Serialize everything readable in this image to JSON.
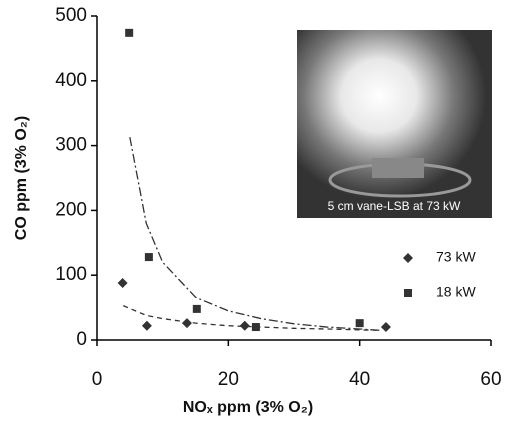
{
  "chart_data": {
    "type": "scatter",
    "xlabel": "NOₓ ppm (3% O₂)",
    "ylabel": "CO ppm (3% O₂)",
    "annotation": "5 cm vane-LSB at 73 kW",
    "xlim": [
      0,
      60
    ],
    "xticks": [
      0,
      20,
      40,
      60
    ],
    "ylim": [
      0,
      500
    ],
    "yticks": [
      0,
      100,
      200,
      300,
      400,
      500
    ],
    "legend": "right",
    "series": [
      {
        "name": "73 kW",
        "color": "#333333",
        "marker": "diamond",
        "x": [
          3.9,
          7.6,
          13.7,
          22.5,
          44
        ],
        "values": [
          88,
          22,
          26,
          22,
          20
        ]
      },
      {
        "name": "18 kW",
        "color": "#333333",
        "marker": "square",
        "x": [
          4.9,
          7.9,
          15.2,
          24.2,
          40
        ],
        "values": [
          474,
          128,
          48,
          20,
          26
        ]
      }
    ],
    "trendlines": [
      {
        "series": 0,
        "dash": "dashed",
        "x": [
          4,
          7.5,
          10,
          15,
          20,
          25,
          30,
          35,
          40,
          43
        ],
        "values": [
          53,
          38,
          33,
          26,
          22,
          20,
          18,
          17,
          15.6,
          15
        ]
      },
      {
        "series": 1,
        "dash": "dashdot",
        "x": [
          5,
          7.5,
          10,
          15,
          20,
          25,
          30,
          35,
          40,
          43
        ],
        "values": [
          313,
          180,
          120,
          66,
          45,
          33,
          25,
          20,
          17,
          15
        ]
      }
    ]
  }
}
